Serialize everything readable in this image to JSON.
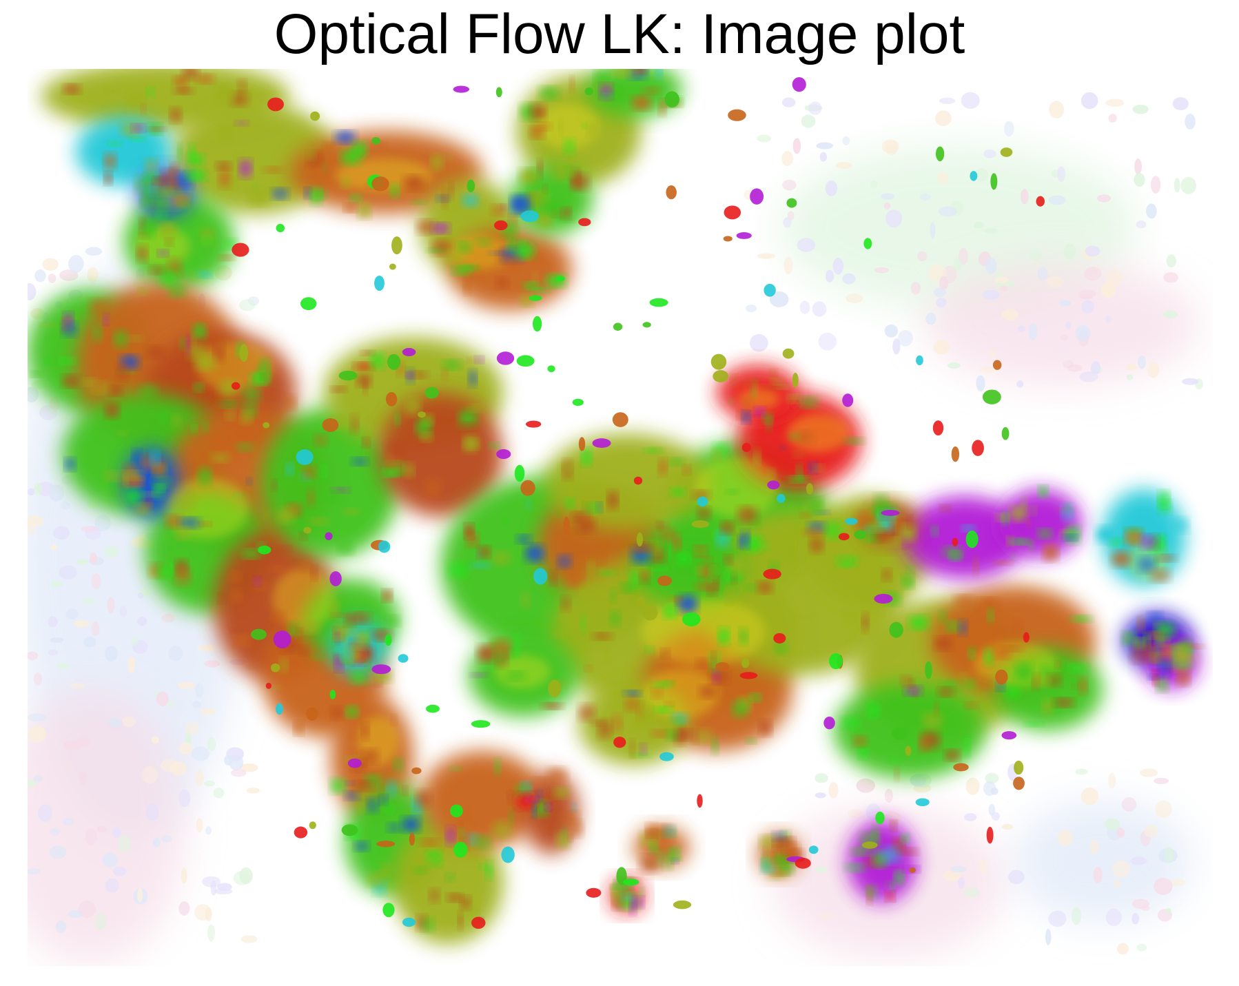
{
  "chart_data": {
    "type": "heatmap",
    "title": "Optical Flow LK: Image plot",
    "xlabel": "",
    "ylabel": "",
    "axes_visible": false,
    "grid": false,
    "legend": "none",
    "encoding": "flow direction shown as hue, flow magnitude shown as saturation",
    "background_color": "#ffffff",
    "palette": {
      "orange_brown": "#c8641a",
      "rust": "#b8481c",
      "olive": "#9fb01a",
      "green": "#3fc21d",
      "bright_green": "#1ee81e",
      "cyan": "#22c9d8",
      "blue": "#1b4fd6",
      "navy": "#1a10c8",
      "magenta": "#b21cd6",
      "red": "#e81c1c",
      "yellow": "#f0e21a",
      "pale_blue": "#dfe8f8",
      "pale_pink": "#f6dde8",
      "pale_green": "#dff5df"
    }
  }
}
